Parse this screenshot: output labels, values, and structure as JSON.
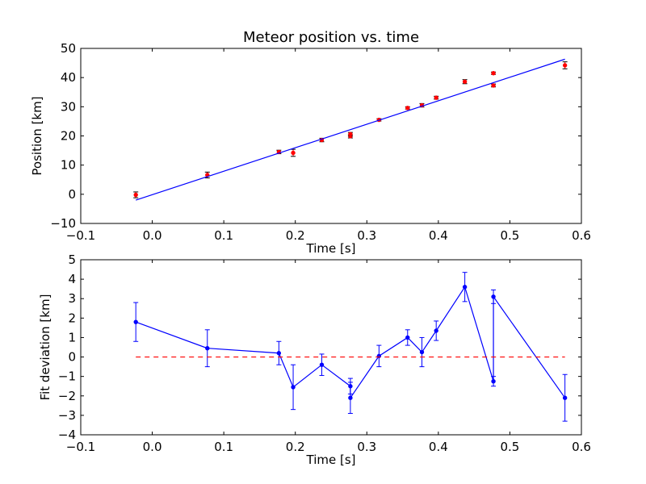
{
  "colors": {
    "fit_line": "#0000ff",
    "measurement_points": "#ff0000",
    "deviation_line": "#0000ff",
    "zero_line": "#ff0000",
    "axes": "#000000",
    "background": "#ffffff"
  },
  "chart_data": [
    {
      "type": "scatter",
      "title": "Meteor position vs. time",
      "xlabel": "Time [s]",
      "ylabel": "Position [km]",
      "xlim": [
        -0.1,
        0.6
      ],
      "ylim": [
        -10,
        50
      ],
      "x_ticks": [
        -0.1,
        0.0,
        0.1,
        0.2,
        0.3,
        0.4,
        0.5,
        0.6
      ],
      "x_tick_labels": [
        "−0.1",
        "0.0",
        "0.1",
        "0.2",
        "0.3",
        "0.4",
        "0.5",
        "0.6"
      ],
      "y_ticks": [
        -10,
        0,
        10,
        20,
        30,
        40,
        50
      ],
      "y_tick_labels": [
        "−10",
        "0",
        "10",
        "20",
        "30",
        "40",
        "50"
      ],
      "grid": false,
      "series": [
        {
          "kind": "errorbar-points",
          "x": [
            -0.023,
            0.077,
            0.177,
            0.197,
            0.237,
            0.277,
            0.277,
            0.317,
            0.357,
            0.377,
            0.397,
            0.437,
            0.477,
            0.477,
            0.577
          ],
          "y": [
            -0.2,
            6.6,
            14.5,
            14.2,
            18.6,
            19.9,
            20.6,
            25.5,
            29.6,
            30.5,
            33.1,
            38.6,
            37.3,
            41.5,
            44.2
          ],
          "yerr": [
            1.0,
            1.0,
            0.6,
            1.2,
            0.6,
            0.6,
            0.6,
            0.4,
            0.4,
            0.6,
            0.5,
            0.7,
            0.5,
            0.4,
            1.2
          ]
        },
        {
          "kind": "line",
          "x": [
            -0.023,
            0.577
          ],
          "y": [
            -2.0,
            46.3
          ]
        }
      ]
    },
    {
      "type": "line",
      "title": "",
      "xlabel": "Time [s]",
      "ylabel": "Fit deviation [km]",
      "xlim": [
        -0.1,
        0.6
      ],
      "ylim": [
        -4,
        5
      ],
      "x_ticks": [
        -0.1,
        0.0,
        0.1,
        0.2,
        0.3,
        0.4,
        0.5,
        0.6
      ],
      "x_tick_labels": [
        "−0.1",
        "0.0",
        "0.1",
        "0.2",
        "0.3",
        "0.4",
        "0.5",
        "0.6"
      ],
      "y_ticks": [
        -4,
        -3,
        -2,
        -1,
        0,
        1,
        2,
        3,
        4,
        5
      ],
      "y_tick_labels": [
        "−4",
        "−3",
        "−2",
        "−1",
        "0",
        "1",
        "2",
        "3",
        "4",
        "5"
      ],
      "grid": false,
      "series": [
        {
          "kind": "errorbar-line",
          "x": [
            -0.023,
            0.077,
            0.177,
            0.197,
            0.237,
            0.277,
            0.277,
            0.317,
            0.357,
            0.377,
            0.397,
            0.437,
            0.477,
            0.477,
            0.577
          ],
          "y": [
            1.8,
            0.45,
            0.2,
            -1.55,
            -0.4,
            -1.5,
            -2.1,
            0.05,
            1.0,
            0.25,
            1.35,
            3.6,
            -1.25,
            3.1,
            -2.1
          ],
          "yerr": [
            1.0,
            0.95,
            0.6,
            1.15,
            0.55,
            0.4,
            0.8,
            0.55,
            0.4,
            0.75,
            0.5,
            0.75,
            0.25,
            0.35,
            1.2
          ]
        },
        {
          "kind": "dashed-line",
          "x": [
            -0.023,
            0.577
          ],
          "y": [
            0,
            0
          ]
        }
      ]
    }
  ]
}
